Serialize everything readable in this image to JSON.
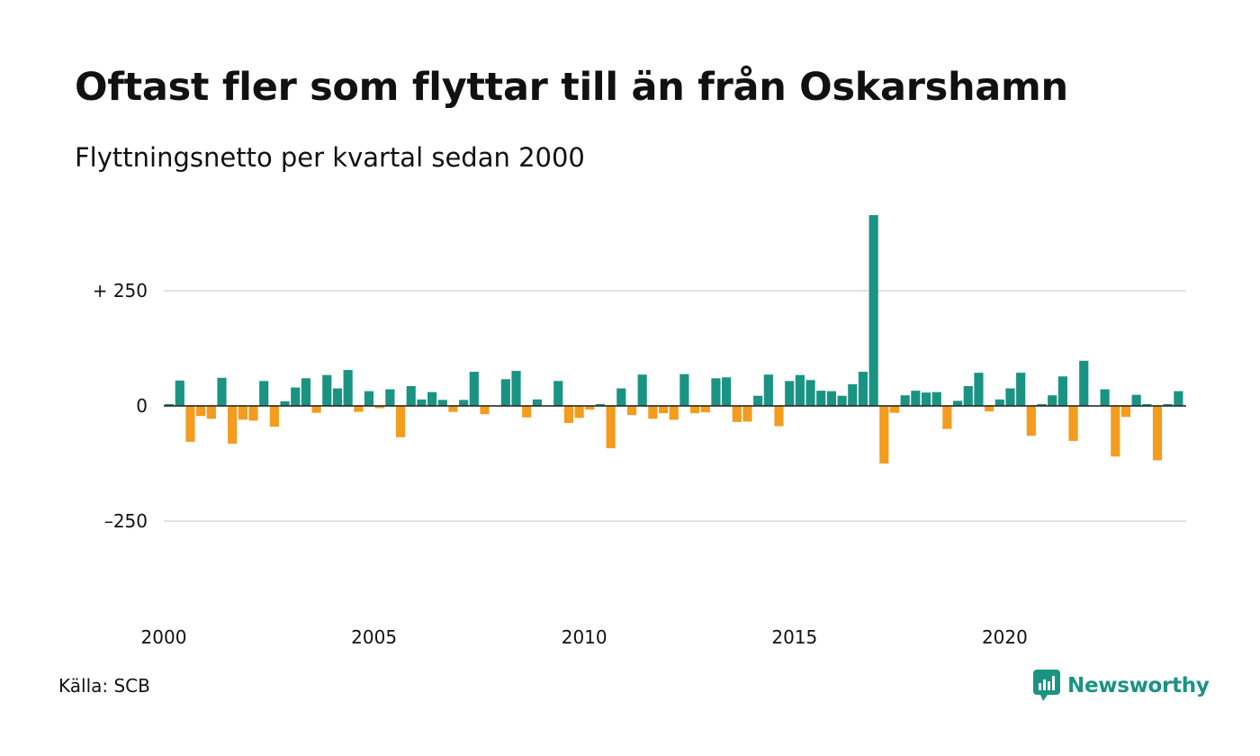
{
  "title": "Oftast fler som flyttar till än från Oskarshamn",
  "subtitle": "Flyttningsnetto per kvartal sedan 2000",
  "source": "Källa: SCB",
  "brand": {
    "name": "Newsworthy",
    "color": "#1b9383"
  },
  "colors": {
    "positive": "#1b9383",
    "negative": "#f39c1e",
    "grid": "#e2e2e2",
    "zero": "#222222"
  },
  "chart_data": {
    "type": "bar",
    "title": "Oftast fler som flyttar till än från Oskarshamn",
    "subtitle": "Flyttningsnetto per kvartal sedan 2000",
    "xlabel": "",
    "ylabel": "",
    "ylim": [
      -450,
      420
    ],
    "grid": true,
    "yticks": [
      {
        "value": 250,
        "label": "+ 250"
      },
      {
        "value": 0,
        "label": "0"
      },
      {
        "value": -250,
        "label": "–250"
      }
    ],
    "xticks": [
      {
        "value": 2000,
        "label": "2000"
      },
      {
        "value": 2005,
        "label": "2005"
      },
      {
        "value": 2010,
        "label": "2010"
      },
      {
        "value": 2015,
        "label": "2015"
      },
      {
        "value": 2020,
        "label": "2020"
      }
    ],
    "start": "2000 Q1",
    "values": [
      4,
      55,
      -78,
      -22,
      -28,
      61,
      -82,
      -30,
      -32,
      54,
      -45,
      10,
      40,
      60,
      -15,
      67,
      38,
      78,
      -13,
      32,
      -5,
      36,
      -68,
      43,
      14,
      30,
      13,
      -13,
      13,
      74,
      -18,
      0,
      58,
      76,
      -25,
      14,
      0,
      54,
      -37,
      -26,
      -8,
      4,
      -92,
      38,
      -20,
      68,
      -28,
      -16,
      -30,
      69,
      -16,
      -14,
      60,
      62,
      -35,
      -34,
      22,
      68,
      -44,
      54,
      67,
      56,
      33,
      32,
      22,
      47,
      74,
      414,
      -125,
      -15,
      23,
      33,
      29,
      30,
      -50,
      11,
      43,
      72,
      -12,
      14,
      38,
      72,
      -65,
      4,
      23,
      64,
      -76,
      98,
      0,
      36,
      -110,
      -24,
      24,
      4,
      -118,
      4,
      32
    ]
  }
}
